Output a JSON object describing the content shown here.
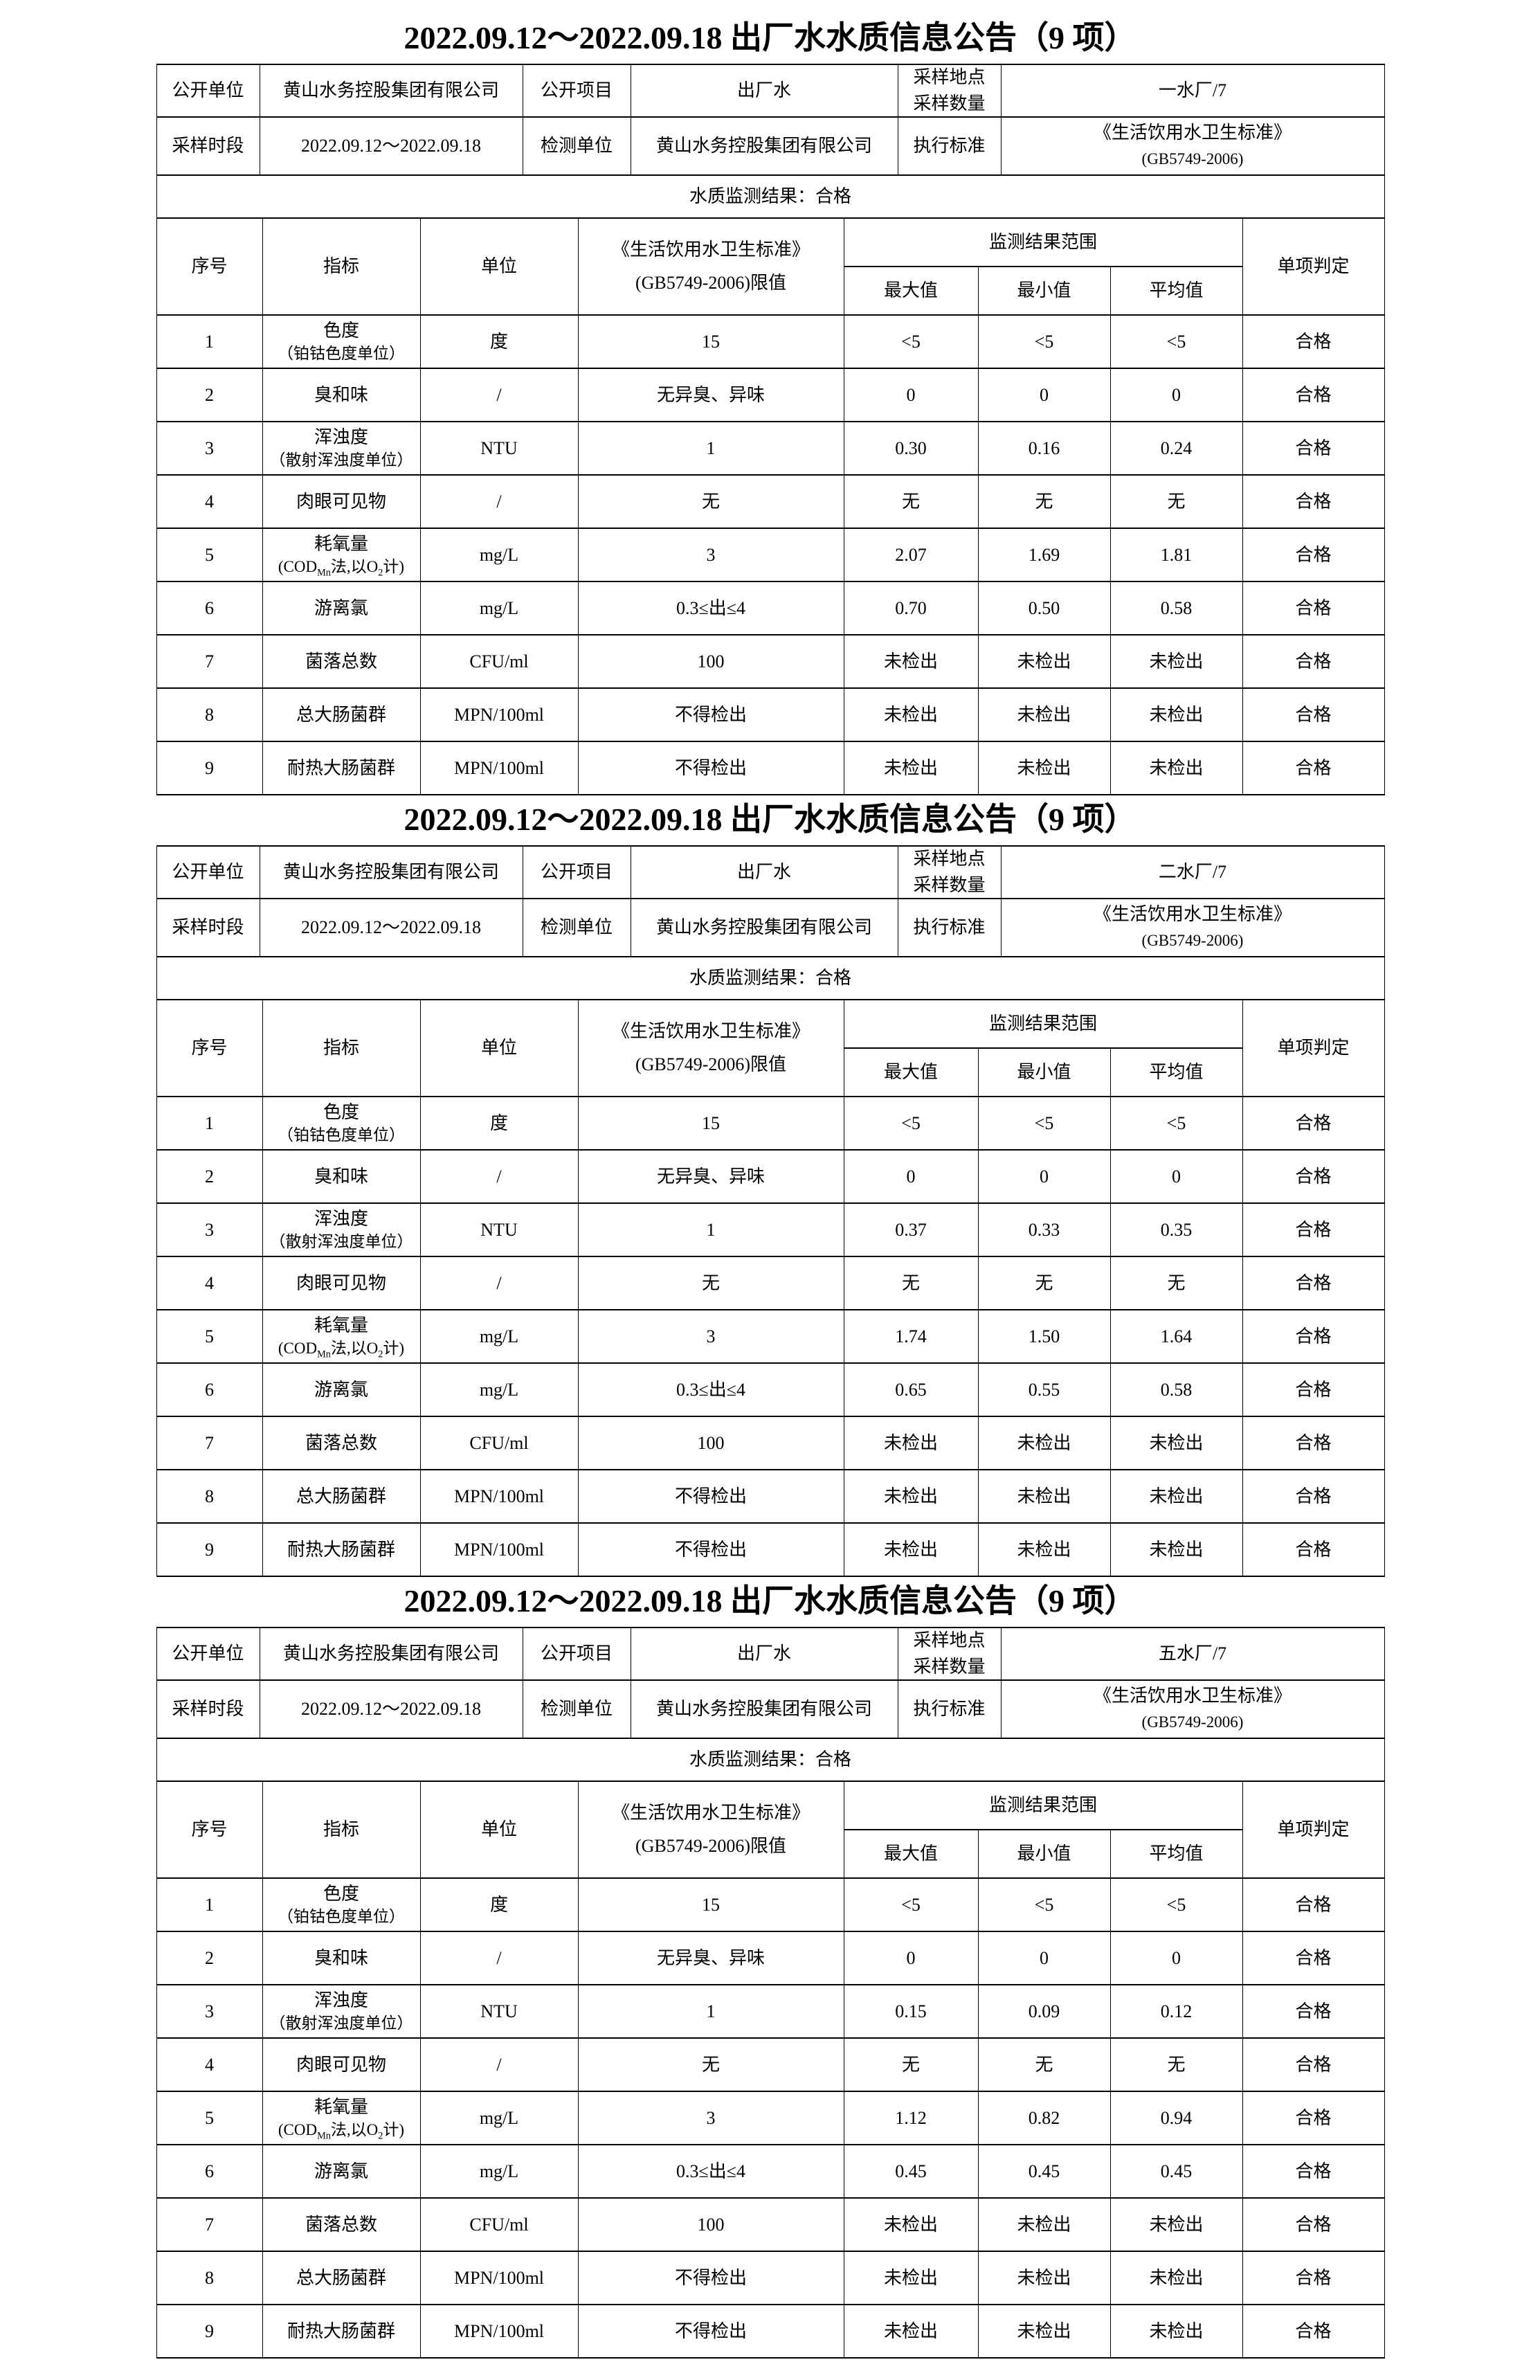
{
  "tables": [
    {
      "title": "2022.09.12～2022.09.18 出厂水水质信息公告（9 项）",
      "info": {
        "open_unit_label": "公开单位",
        "open_unit_value": "黄山水务控股集团有限公司",
        "open_project_label": "公开项目",
        "open_project_value": "出厂水",
        "sampling_site_label_line1": "采样地点",
        "sampling_site_label_line2": "采样数量",
        "sampling_site_value": "一水厂/7",
        "sampling_period_label": "采样时段",
        "sampling_period_value": "2022.09.12～2022.09.18",
        "test_unit_label": "检测单位",
        "test_unit_value": "黄山水务控股集团有限公司",
        "standard_label": "执行标准",
        "standard_value_line1": "《生活饮用水卫生标准》",
        "standard_value_line2": "(GB5749-2006)"
      },
      "result": "水质监测结果：合格",
      "columns": {
        "no": "序号",
        "indicator": "指标",
        "unit": "单位",
        "limit_line1": "《生活饮用水卫生标准》",
        "limit_line2": "(GB5749-2006)限值",
        "range_group": "监测结果范围",
        "max": "最大值",
        "min": "最小值",
        "avg": "平均值",
        "verdict": "单项判定"
      },
      "rows": [
        {
          "no": "1",
          "indicator": "色度",
          "sub": [
            "（铂钴色度单位）"
          ],
          "unit": "度",
          "limit": "15",
          "max": "<5",
          "min": "<5",
          "avg": "<5",
          "verdict": "合格"
        },
        {
          "no": "2",
          "indicator": "臭和味",
          "unit": "/",
          "limit": "无异臭、异味",
          "max": "0",
          "min": "0",
          "avg": "0",
          "verdict": "合格"
        },
        {
          "no": "3",
          "indicator": "浑浊度",
          "sub": [
            "（散射浑浊度单位）"
          ],
          "unit": "NTU",
          "limit": "1",
          "max": "0.30",
          "min": "0.16",
          "avg": "0.24",
          "verdict": "合格"
        },
        {
          "no": "4",
          "indicator": "肉眼可见物",
          "unit": "/",
          "limit": "无",
          "max": "无",
          "min": "无",
          "avg": "无",
          "verdict": "合格"
        },
        {
          "no": "5",
          "indicator": "耗氧量",
          "sub": [
            "(COD",
            "Mn",
            "法,以O",
            "2",
            "计)"
          ],
          "unit": "mg/L",
          "limit": "3",
          "max": "2.07",
          "min": "1.69",
          "avg": "1.81",
          "verdict": "合格"
        },
        {
          "no": "6",
          "indicator": "游离氯",
          "unit": "mg/L",
          "limit": "0.3≤出≤4",
          "max": "0.70",
          "min": "0.50",
          "avg": "0.58",
          "verdict": "合格"
        },
        {
          "no": "7",
          "indicator": "菌落总数",
          "unit": "CFU/ml",
          "limit": "100",
          "max": "未检出",
          "min": "未检出",
          "avg": "未检出",
          "verdict": "合格"
        },
        {
          "no": "8",
          "indicator": "总大肠菌群",
          "unit": "MPN/100ml",
          "limit": "不得检出",
          "max": "未检出",
          "min": "未检出",
          "avg": "未检出",
          "verdict": "合格"
        },
        {
          "no": "9",
          "indicator": "耐热大肠菌群",
          "unit": "MPN/100ml",
          "limit": "不得检出",
          "max": "未检出",
          "min": "未检出",
          "avg": "未检出",
          "verdict": "合格"
        }
      ]
    },
    {
      "title": "2022.09.12～2022.09.18 出厂水水质信息公告（9 项）",
      "info": {
        "open_unit_label": "公开单位",
        "open_unit_value": "黄山水务控股集团有限公司",
        "open_project_label": "公开项目",
        "open_project_value": "出厂水",
        "sampling_site_label_line1": "采样地点",
        "sampling_site_label_line2": "采样数量",
        "sampling_site_value": "二水厂/7",
        "sampling_period_label": "采样时段",
        "sampling_period_value": "2022.09.12～2022.09.18",
        "test_unit_label": "检测单位",
        "test_unit_value": "黄山水务控股集团有限公司",
        "standard_label": "执行标准",
        "standard_value_line1": "《生活饮用水卫生标准》",
        "standard_value_line2": "(GB5749-2006)"
      },
      "result": "水质监测结果：合格",
      "columns": {
        "no": "序号",
        "indicator": "指标",
        "unit": "单位",
        "limit_line1": "《生活饮用水卫生标准》",
        "limit_line2": "(GB5749-2006)限值",
        "range_group": "监测结果范围",
        "max": "最大值",
        "min": "最小值",
        "avg": "平均值",
        "verdict": "单项判定"
      },
      "rows": [
        {
          "no": "1",
          "indicator": "色度",
          "sub": [
            "（铂钴色度单位）"
          ],
          "unit": "度",
          "limit": "15",
          "max": "<5",
          "min": "<5",
          "avg": "<5",
          "verdict": "合格"
        },
        {
          "no": "2",
          "indicator": "臭和味",
          "unit": "/",
          "limit": "无异臭、异味",
          "max": "0",
          "min": "0",
          "avg": "0",
          "verdict": "合格"
        },
        {
          "no": "3",
          "indicator": "浑浊度",
          "sub": [
            "（散射浑浊度单位）"
          ],
          "unit": "NTU",
          "limit": "1",
          "max": "0.37",
          "min": "0.33",
          "avg": "0.35",
          "verdict": "合格"
        },
        {
          "no": "4",
          "indicator": "肉眼可见物",
          "unit": "/",
          "limit": "无",
          "max": "无",
          "min": "无",
          "avg": "无",
          "verdict": "合格"
        },
        {
          "no": "5",
          "indicator": "耗氧量",
          "sub": [
            "(COD",
            "Mn",
            "法,以O",
            "2",
            "计)"
          ],
          "unit": "mg/L",
          "limit": "3",
          "max": "1.74",
          "min": "1.50",
          "avg": "1.64",
          "verdict": "合格"
        },
        {
          "no": "6",
          "indicator": "游离氯",
          "unit": "mg/L",
          "limit": "0.3≤出≤4",
          "max": "0.65",
          "min": "0.55",
          "avg": "0.58",
          "verdict": "合格"
        },
        {
          "no": "7",
          "indicator": "菌落总数",
          "unit": "CFU/ml",
          "limit": "100",
          "max": "未检出",
          "min": "未检出",
          "avg": "未检出",
          "verdict": "合格"
        },
        {
          "no": "8",
          "indicator": "总大肠菌群",
          "unit": "MPN/100ml",
          "limit": "不得检出",
          "max": "未检出",
          "min": "未检出",
          "avg": "未检出",
          "verdict": "合格"
        },
        {
          "no": "9",
          "indicator": "耐热大肠菌群",
          "unit": "MPN/100ml",
          "limit": "不得检出",
          "max": "未检出",
          "min": "未检出",
          "avg": "未检出",
          "verdict": "合格"
        }
      ]
    },
    {
      "title": "2022.09.12～2022.09.18 出厂水水质信息公告（9 项）",
      "info": {
        "open_unit_label": "公开单位",
        "open_unit_value": "黄山水务控股集团有限公司",
        "open_project_label": "公开项目",
        "open_project_value": "出厂水",
        "sampling_site_label_line1": "采样地点",
        "sampling_site_label_line2": "采样数量",
        "sampling_site_value": "五水厂/7",
        "sampling_period_label": "采样时段",
        "sampling_period_value": "2022.09.12～2022.09.18",
        "test_unit_label": "检测单位",
        "test_unit_value": "黄山水务控股集团有限公司",
        "standard_label": "执行标准",
        "standard_value_line1": "《生活饮用水卫生标准》",
        "standard_value_line2": "(GB5749-2006)"
      },
      "result": "水质监测结果：合格",
      "columns": {
        "no": "序号",
        "indicator": "指标",
        "unit": "单位",
        "limit_line1": "《生活饮用水卫生标准》",
        "limit_line2": "(GB5749-2006)限值",
        "range_group": "监测结果范围",
        "max": "最大值",
        "min": "最小值",
        "avg": "平均值",
        "verdict": "单项判定"
      },
      "rows": [
        {
          "no": "1",
          "indicator": "色度",
          "sub": [
            "（铂钴色度单位）"
          ],
          "unit": "度",
          "limit": "15",
          "max": "<5",
          "min": "<5",
          "avg": "<5",
          "verdict": "合格"
        },
        {
          "no": "2",
          "indicator": "臭和味",
          "unit": "/",
          "limit": "无异臭、异味",
          "max": "0",
          "min": "0",
          "avg": "0",
          "verdict": "合格"
        },
        {
          "no": "3",
          "indicator": "浑浊度",
          "sub": [
            "（散射浑浊度单位）"
          ],
          "unit": "NTU",
          "limit": "1",
          "max": "0.15",
          "min": "0.09",
          "avg": "0.12",
          "verdict": "合格"
        },
        {
          "no": "4",
          "indicator": "肉眼可见物",
          "unit": "/",
          "limit": "无",
          "max": "无",
          "min": "无",
          "avg": "无",
          "verdict": "合格"
        },
        {
          "no": "5",
          "indicator": "耗氧量",
          "sub": [
            "(COD",
            "Mn",
            "法,以O",
            "2",
            "计)"
          ],
          "unit": "mg/L",
          "limit": "3",
          "max": "1.12",
          "min": "0.82",
          "avg": "0.94",
          "verdict": "合格"
        },
        {
          "no": "6",
          "indicator": "游离氯",
          "unit": "mg/L",
          "limit": "0.3≤出≤4",
          "max": "0.45",
          "min": "0.45",
          "avg": "0.45",
          "verdict": "合格"
        },
        {
          "no": "7",
          "indicator": "菌落总数",
          "unit": "CFU/ml",
          "limit": "100",
          "max": "未检出",
          "min": "未检出",
          "avg": "未检出",
          "verdict": "合格"
        },
        {
          "no": "8",
          "indicator": "总大肠菌群",
          "unit": "MPN/100ml",
          "limit": "不得检出",
          "max": "未检出",
          "min": "未检出",
          "avg": "未检出",
          "verdict": "合格"
        },
        {
          "no": "9",
          "indicator": "耐热大肠菌群",
          "unit": "MPN/100ml",
          "limit": "不得检出",
          "max": "未检出",
          "min": "未检出",
          "avg": "未检出",
          "verdict": "合格"
        }
      ]
    }
  ]
}
